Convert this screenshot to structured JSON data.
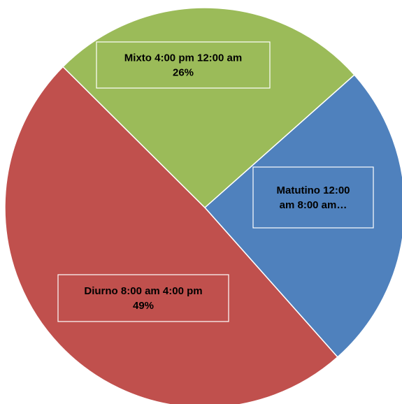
{
  "chart_data": {
    "type": "pie",
    "title": "",
    "start_angle_deg": 48.4,
    "direction": "clockwise",
    "slices": [
      {
        "name": "Matutino 12:00 am 8:00 am",
        "value": 25,
        "label_lines": [
          "Matutino 12:00",
          "am 8:00 am…"
        ],
        "color": "#4f81bd"
      },
      {
        "name": "Diurno 8:00 am 4:00 pm",
        "value": 49,
        "label_lines": [
          "Diurno 8:00 am 4:00 pm",
          "49%"
        ],
        "color": "#c0504d"
      },
      {
        "name": "Mixto 4:00 pm 12:00 am",
        "value": 26,
        "label_lines": [
          "Mixto 4:00 pm 12:00 am",
          "26%"
        ],
        "color": "#9bbb59"
      }
    ]
  }
}
